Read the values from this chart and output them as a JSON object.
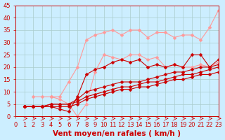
{
  "bg_color": "#cceeff",
  "grid_color": "#aacccc",
  "line_color_dark": "#cc0000",
  "line_color_light": "#ff9999",
  "xlabel": "Vent moyen/en rafales ( km/h )",
  "xlabel_color": "#cc0000",
  "xlabel_fontsize": 7.5,
  "tick_color": "#cc0000",
  "tick_fontsize": 6,
  "xlim": [
    0,
    23
  ],
  "ylim": [
    0,
    45
  ],
  "yticks": [
    0,
    5,
    10,
    15,
    20,
    25,
    30,
    35,
    40,
    45
  ],
  "xticks": [
    0,
    1,
    2,
    3,
    4,
    5,
    6,
    7,
    8,
    9,
    10,
    11,
    12,
    13,
    14,
    15,
    16,
    17,
    18,
    19,
    20,
    21,
    22,
    23
  ],
  "lines_dark": [
    {
      "x": [
        1,
        2,
        3,
        4,
        5,
        6,
        7,
        8,
        9,
        10,
        11,
        12,
        13,
        14,
        15,
        16,
        17,
        18,
        19,
        20,
        21,
        22,
        23
      ],
      "y": [
        4,
        4,
        4,
        4,
        3,
        2,
        8,
        17,
        19,
        20,
        22,
        23,
        22,
        23,
        20,
        21,
        20,
        21,
        20,
        25,
        25,
        20,
        23
      ]
    },
    {
      "x": [
        1,
        2,
        3,
        4,
        5,
        6,
        7,
        8,
        9,
        10,
        11,
        12,
        13,
        14,
        15,
        16,
        17,
        18,
        19,
        20,
        21,
        22,
        23
      ],
      "y": [
        4,
        4,
        4,
        5,
        5,
        5,
        7,
        10,
        11,
        12,
        13,
        14,
        14,
        14,
        15,
        16,
        17,
        18,
        18,
        19,
        20,
        20,
        21
      ]
    },
    {
      "x": [
        1,
        2,
        3,
        4,
        5,
        6,
        7,
        8,
        9,
        10,
        11,
        12,
        13,
        14,
        15,
        16,
        17,
        18,
        19,
        20,
        21,
        22,
        23
      ],
      "y": [
        4,
        4,
        4,
        5,
        5,
        5,
        6,
        8,
        9,
        10,
        11,
        12,
        12,
        13,
        14,
        14,
        15,
        16,
        17,
        17,
        18,
        19,
        20
      ]
    },
    {
      "x": [
        1,
        2,
        3,
        4,
        5,
        6,
        7,
        8,
        9,
        10,
        11,
        12,
        13,
        14,
        15,
        16,
        17,
        18,
        19,
        20,
        21,
        22,
        23
      ],
      "y": [
        4,
        4,
        4,
        4,
        4,
        4,
        5,
        7,
        8,
        9,
        10,
        11,
        11,
        12,
        12,
        13,
        14,
        15,
        15,
        16,
        17,
        17,
        18
      ]
    }
  ],
  "lines_light": [
    {
      "x": [
        2,
        3,
        4,
        5,
        6,
        7,
        8,
        9,
        10,
        11,
        12,
        13,
        14,
        15,
        16,
        17,
        18,
        19,
        20,
        21,
        22,
        23
      ],
      "y": [
        8,
        8,
        8,
        8,
        14,
        20,
        31,
        33,
        34,
        35,
        33,
        35,
        35,
        32,
        34,
        34,
        32,
        33,
        33,
        31,
        36,
        43
      ]
    },
    {
      "x": [
        4,
        5,
        6,
        7,
        8,
        9,
        10,
        11,
        12,
        13,
        14,
        15,
        16,
        17,
        18,
        19,
        20,
        21,
        22,
        23
      ],
      "y": [
        8,
        7,
        5,
        0,
        5,
        18,
        25,
        24,
        23,
        25,
        25,
        23,
        24,
        20,
        21,
        20,
        20,
        21,
        20,
        22
      ]
    }
  ],
  "markersize": 2.5
}
